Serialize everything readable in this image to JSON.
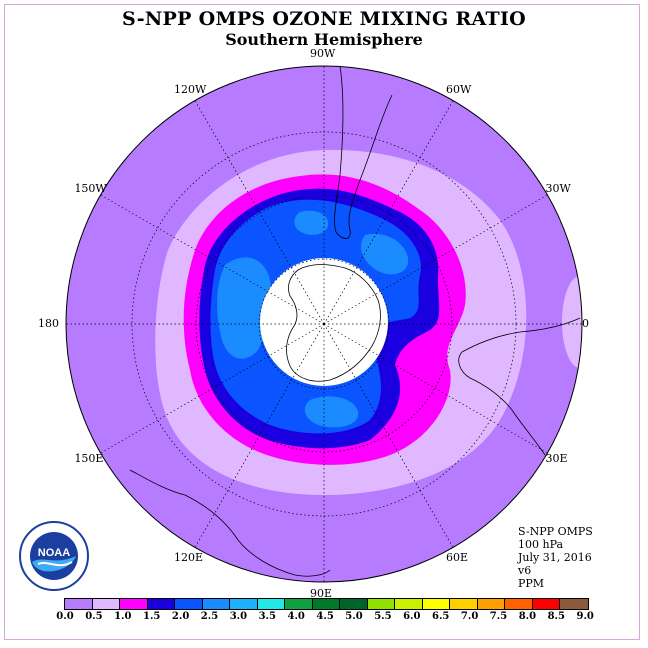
{
  "title": "S-NPP OMPS OZONE MIXING RATIO",
  "subtitle": "Southern Hemisphere",
  "longitude_labels": [
    {
      "text": "90W",
      "deg": -90
    },
    {
      "text": "60W",
      "deg": -60
    },
    {
      "text": "30W",
      "deg": -30
    },
    {
      "text": "0",
      "deg": 0
    },
    {
      "text": "30E",
      "deg": 30
    },
    {
      "text": "60E",
      "deg": 60
    },
    {
      "text": "90E",
      "deg": 90
    },
    {
      "text": "120E",
      "deg": 120
    },
    {
      "text": "150E",
      "deg": 150
    },
    {
      "text": "180",
      "deg": 180
    },
    {
      "text": "150W",
      "deg": -150
    },
    {
      "text": "120W",
      "deg": -120
    }
  ],
  "info": {
    "instrument": "S-NPP OMPS",
    "level": "100 hPa",
    "date": "July 31, 2016",
    "version": "v6",
    "units": "PPM"
  },
  "colorbar": {
    "ticks": [
      "0.0",
      "0.5",
      "1.0",
      "1.5",
      "2.0",
      "2.5",
      "3.0",
      "3.5",
      "4.0",
      "4.5",
      "5.0",
      "5.5",
      "6.0",
      "6.5",
      "7.0",
      "7.5",
      "8.0",
      "8.5",
      "9.0"
    ],
    "colors": [
      "#b77bff",
      "#e0b8ff",
      "#ff00ff",
      "#1a00e0",
      "#0a55ff",
      "#1a8cff",
      "#1cb0ff",
      "#22e8e8",
      "#10a040",
      "#007a28",
      "#006428",
      "#90e000",
      "#c8f000",
      "#ffff00",
      "#ffd000",
      "#ffa000",
      "#ff6000",
      "#ff0000",
      "#8b5a3a"
    ]
  },
  "contour_colors": {
    "background": "#b77bff",
    "level_0_5": "#e0b8ff",
    "level_1_0": "#ff00ff",
    "level_1_5": "#1a00e0",
    "level_2_0": "#0a55ff",
    "level_2_5": "#1a8cff",
    "no_data": "#ffffff"
  },
  "logo_text": "NOAA"
}
